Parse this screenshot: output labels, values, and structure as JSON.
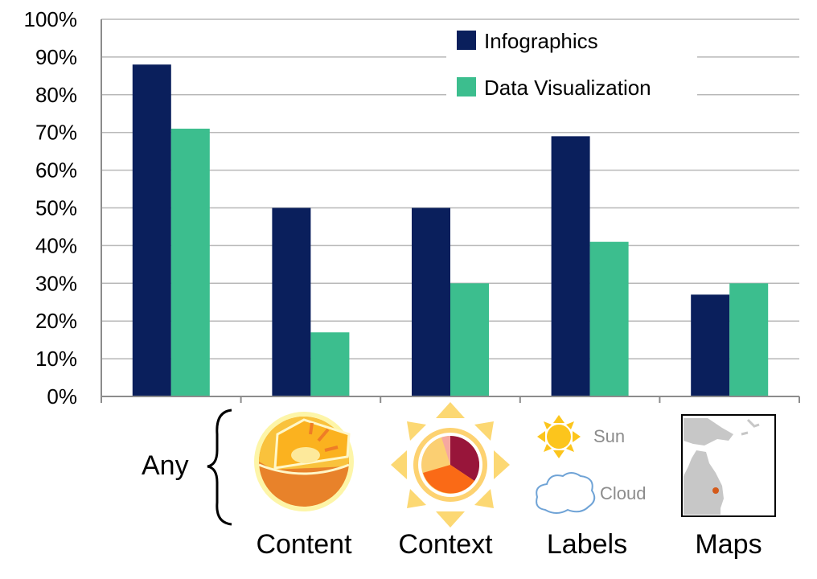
{
  "chart_data": {
    "type": "bar",
    "categories": [
      "Any",
      "Content",
      "Context",
      "Labels",
      "Maps"
    ],
    "series": [
      {
        "name": "Infographics",
        "color": "#0a1f5c",
        "values": [
          88,
          50,
          50,
          69,
          27
        ]
      },
      {
        "name": "Data Visualization",
        "color": "#3cbe8e",
        "values": [
          71,
          17,
          30,
          41,
          30
        ]
      }
    ],
    "ylim": [
      0,
      100
    ],
    "yticks": [
      "0%",
      "10%",
      "20%",
      "30%",
      "40%",
      "50%",
      "60%",
      "70%",
      "80%",
      "90%",
      "100%"
    ],
    "grid": true,
    "legend_position": "top-right"
  },
  "icons": {
    "any_brace": "curly-brace-icon",
    "content": "earth-core-icon",
    "context": "sun-pie-icon",
    "labels": "sun-cloud-labels-icon",
    "maps": "map-icon"
  },
  "icon_text": {
    "sun": "Sun",
    "cloud": "Cloud"
  }
}
